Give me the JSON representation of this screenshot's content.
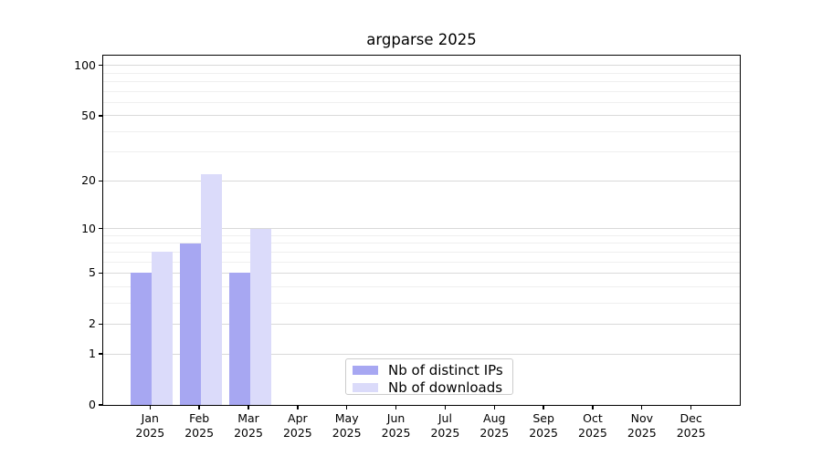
{
  "figure": {
    "background": "#ffffff"
  },
  "chart_data": {
    "type": "bar",
    "title": "argparse 2025",
    "year_label": "2025",
    "categories": [
      "Jan",
      "Feb",
      "Mar",
      "Apr",
      "May",
      "Jun",
      "Jul",
      "Aug",
      "Sep",
      "Oct",
      "Nov",
      "Dec"
    ],
    "series": [
      {
        "name": "Nb of distinct IPs",
        "color": "#a7a7f2",
        "values": [
          5,
          8,
          5,
          0,
          0,
          0,
          0,
          0,
          0,
          0,
          0,
          0
        ]
      },
      {
        "name": "Nb of downloads",
        "color": "#dbdbfa",
        "values": [
          7,
          22,
          10,
          0,
          0,
          0,
          0,
          0,
          0,
          0,
          0,
          0
        ]
      }
    ],
    "y_axis": {
      "scale": "log1p",
      "ticks": [
        0,
        1,
        2,
        5,
        10,
        20,
        50,
        100
      ],
      "minor_gridlines": [
        3,
        4,
        6,
        7,
        8,
        9,
        30,
        40,
        60,
        70,
        80,
        90
      ],
      "ylim": [
        0,
        114
      ]
    },
    "x_axis": {
      "tick_label_line1": [
        "Jan",
        "Feb",
        "Mar",
        "Apr",
        "May",
        "Jun",
        "Jul",
        "Aug",
        "Sep",
        "Oct",
        "Nov",
        "Dec"
      ],
      "tick_label_line2": "2025"
    },
    "legend": {
      "position": "lower center",
      "entries": [
        "Nb of distinct IPs",
        "Nb of downloads"
      ]
    },
    "grid": true
  },
  "colors": {
    "major_grid": "#d9d9d9",
    "minor_grid": "#efefef",
    "spine": "#000000",
    "tick_text": "#000000",
    "legend_border": "#cccccc"
  }
}
